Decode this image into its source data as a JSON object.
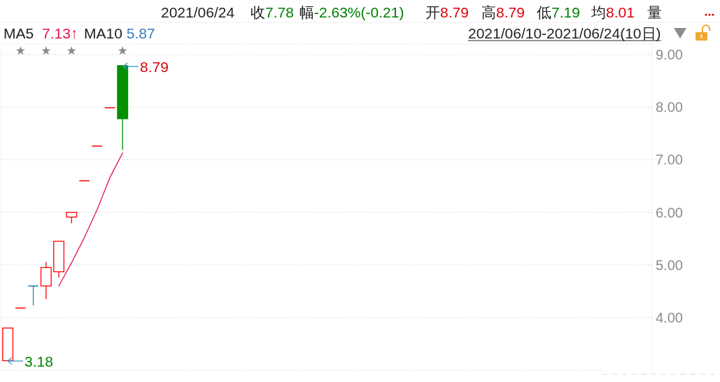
{
  "chart_data": {
    "type": "candlestick",
    "categories": [
      null,
      null,
      null,
      null,
      null,
      null,
      null,
      null,
      null,
      null,
      null,
      null,
      null,
      null,
      null,
      null,
      null,
      null,
      null,
      null,
      null,
      null,
      null,
      null,
      null,
      null,
      null,
      null,
      null,
      null,
      null,
      null,
      null,
      null,
      null,
      null,
      null,
      null,
      null,
      null,
      null,
      null,
      null,
      null,
      null,
      null,
      null,
      null,
      null,
      null,
      null
    ],
    "ohlc": [
      [
        3.18,
        3.8,
        3.18,
        3.8
      ],
      [
        4.18,
        4.18,
        4.18,
        4.18
      ],
      [
        4.6,
        4.6,
        4.23,
        4.6
      ],
      [
        4.6,
        5.06,
        4.35,
        4.95
      ],
      [
        4.87,
        5.45,
        4.76,
        5.45
      ],
      [
        5.91,
        6.0,
        5.79,
        6.0
      ],
      [
        6.6,
        6.6,
        6.6,
        6.6
      ],
      [
        7.26,
        7.26,
        7.26,
        7.26
      ],
      [
        7.99,
        7.99,
        7.99,
        7.99
      ],
      [
        8.79,
        8.79,
        7.19,
        7.78
      ],
      null,
      null,
      null,
      null,
      null,
      null,
      null,
      null,
      null,
      null,
      null,
      null,
      null,
      null,
      null,
      null,
      null,
      null,
      null,
      null,
      null,
      null,
      null,
      null,
      null,
      null,
      null,
      null,
      null,
      null,
      null,
      null,
      null,
      null,
      null,
      null,
      null,
      null,
      null,
      null,
      null
    ],
    "colors": [
      "#ff0000",
      "#ff0000",
      "#2a7ab0",
      "#ff0000",
      "#ff0000",
      "#ff0000",
      "#ff0000",
      "#ff0000",
      "#ff0000",
      "#009000",
      null,
      null,
      null,
      null,
      null,
      null,
      null,
      null,
      null,
      null,
      null,
      null,
      null,
      null,
      null,
      null,
      null,
      null,
      null,
      null,
      null,
      null,
      null,
      null,
      null,
      null,
      null,
      null,
      null,
      null,
      null,
      null,
      null,
      null,
      null,
      null,
      null,
      null,
      null,
      null,
      null
    ],
    "series": [
      {
        "type": "line",
        "name": "MA5",
        "color": "#e3164a",
        "values": [
          null,
          null,
          null,
          null,
          4.6,
          5.04,
          5.52,
          6.05,
          6.66,
          7.13,
          null,
          null,
          null,
          null,
          null,
          null,
          null,
          null,
          null,
          null,
          null,
          null,
          null,
          null,
          null,
          null,
          null,
          null,
          null,
          null,
          null,
          null,
          null,
          null,
          null,
          null,
          null,
          null,
          null,
          null,
          null,
          null,
          null,
          null,
          null,
          null,
          null,
          null,
          null,
          null,
          null
        ]
      },
      {
        "type": "scatter",
        "marker": "star",
        "color": "#8c8c8c",
        "values": [
          null,
          9.07,
          null,
          9.07,
          null,
          9.07,
          null,
          null,
          null,
          9.07,
          null,
          null,
          null,
          null,
          null,
          null,
          null,
          null,
          null,
          null,
          null,
          null,
          null,
          null,
          null,
          null,
          null,
          null,
          null,
          null,
          null,
          null,
          null,
          null,
          null,
          null,
          null,
          null,
          null,
          null,
          null,
          null,
          null,
          null,
          null,
          null,
          null,
          null,
          null,
          null,
          null
        ]
      }
    ],
    "ylim": [
      3.0,
      9.2
    ],
    "yticks": [
      {
        "value": 4,
        "label": "4.00"
      },
      {
        "value": 5,
        "label": "5.00"
      },
      {
        "value": 6,
        "label": "6.00"
      },
      {
        "value": 7,
        "label": "7.00"
      },
      {
        "value": 8,
        "label": "8.00"
      },
      {
        "value": 9,
        "label": "9.00"
      }
    ],
    "grid": "y",
    "legend": "top left",
    "tick_labels": "y",
    "annotations": [
      "2021/06/24",
      "收7.78",
      "幅-2.63%(-0.21)",
      "开8.79",
      "高8.79",
      "低7.19",
      "均8.01",
      "量",
      "7.13↑",
      "MA10 5.87",
      "2021/06/10-2021/06/24(10日)",
      "8.79",
      "3.18"
    ]
  }
}
